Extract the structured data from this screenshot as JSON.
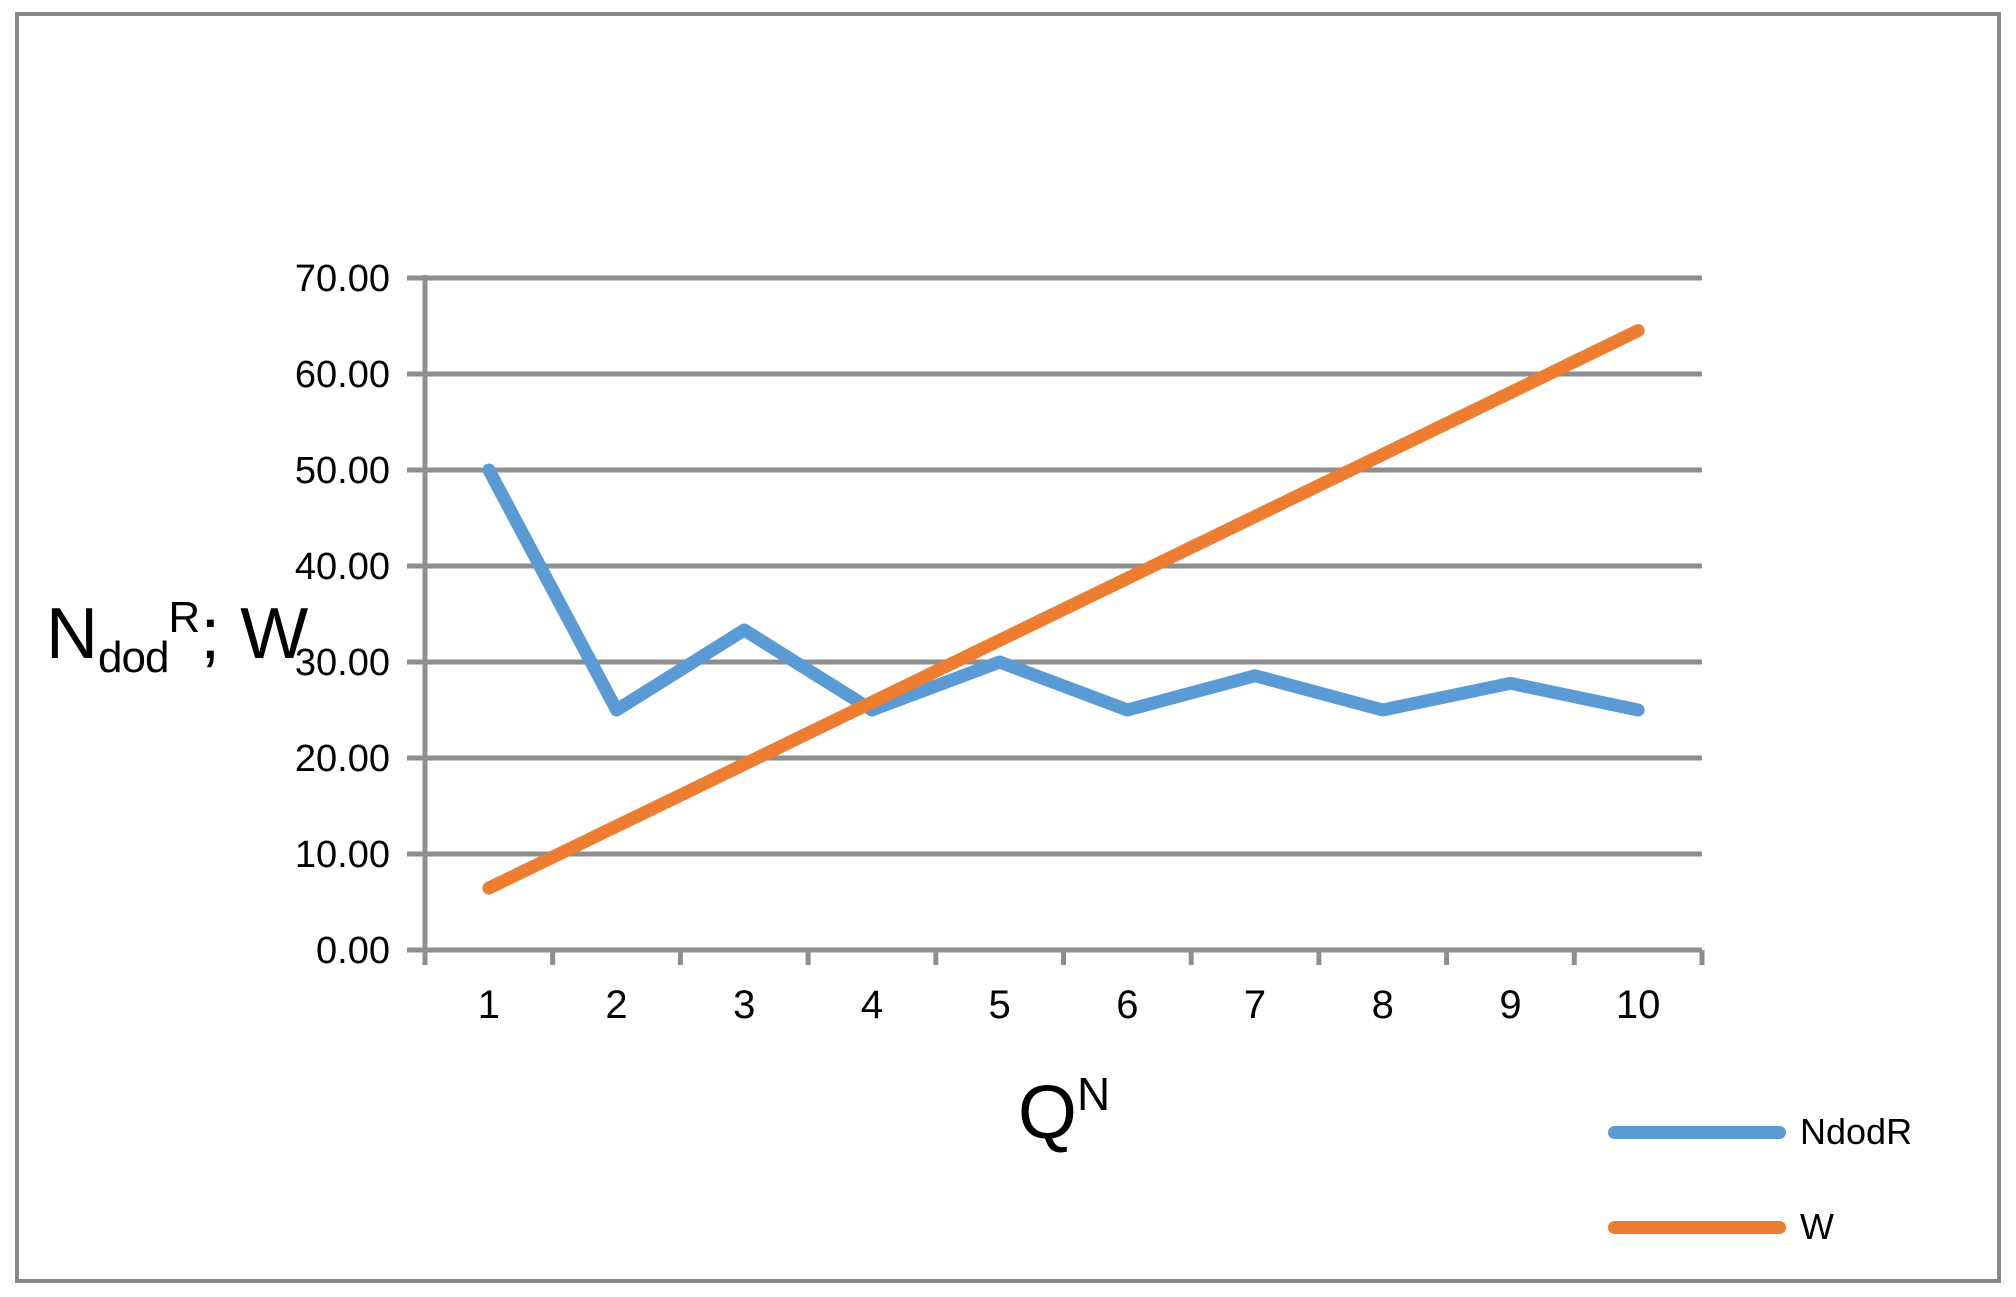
{
  "chart_data": {
    "type": "line",
    "title": "",
    "x_axis_title": {
      "base": "Q",
      "sup": "N"
    },
    "y_axis_title": {
      "base": "N",
      "sub": "dod",
      "sup": "R",
      "rest": "; W"
    },
    "categories": [
      "1",
      "2",
      "3",
      "4",
      "5",
      "6",
      "7",
      "8",
      "9",
      "10"
    ],
    "y_ticks": [
      "0.00",
      "10.00",
      "20.00",
      "30.00",
      "40.00",
      "50.00",
      "60.00",
      "70.00"
    ],
    "ylim": [
      0,
      70
    ],
    "grid": true,
    "legend_position": "bottom-right",
    "series": [
      {
        "name": "NdodR",
        "color": "#5B9BD5",
        "values": [
          50.0,
          25.0,
          33.33,
          25.0,
          30.0,
          25.0,
          28.57,
          25.0,
          27.78,
          25.0
        ]
      },
      {
        "name": "W",
        "color": "#ED7D31",
        "values": [
          6.45,
          12.9,
          19.35,
          25.81,
          32.26,
          38.71,
          45.16,
          51.61,
          58.06,
          64.52
        ]
      }
    ]
  },
  "colors": {
    "gridline": "#8E8E8E",
    "axis": "#8E8E8E",
    "frame_border": "#878787",
    "text": "#000000",
    "background": "#FFFFFF"
  }
}
